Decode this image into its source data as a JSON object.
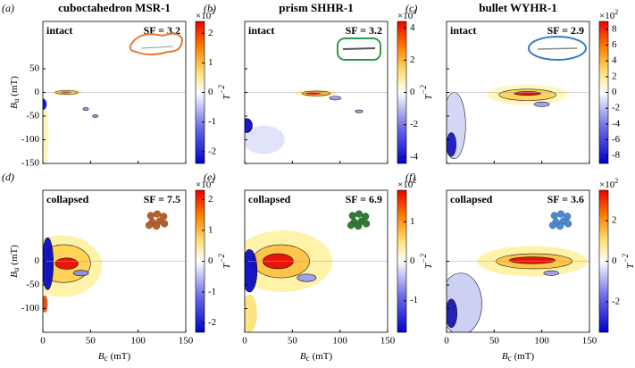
{
  "chart_data": [
    {
      "type": "contour",
      "panel_label": "(a)",
      "title": "cuboctahedron MSR-1",
      "state": "intact",
      "sf_label": "SF = 3.2",
      "shape_color": "#e8783a",
      "shape": "outline",
      "xlim": [
        0,
        150
      ],
      "xticks": [
        0,
        50,
        100,
        150
      ],
      "show_xtick_labels": false,
      "ylim": [
        -150,
        150
      ],
      "yticks": [
        -150,
        -100,
        -50,
        0,
        50
      ],
      "show_ytick_labels": true,
      "ylabel": "B",
      "ylabel_sub": "u",
      "ylabel_unit": "(mT)",
      "clim": [
        -2.4,
        2.4
      ],
      "cticks": [
        -2,
        -1,
        0,
        1,
        2
      ],
      "colorbar_scale": "×10",
      "colorbar_scale_exp": "5",
      "colorbar_label": "T",
      "colorbar_label_exp": "−2"
    },
    {
      "type": "contour",
      "panel_label": "(b)",
      "title": "prism SHHR-1",
      "state": "intact",
      "sf_label": "SF = 3.2",
      "shape_color": "#2e9a4a",
      "shape": "rounded",
      "xlim": [
        0,
        150
      ],
      "xticks": [
        0,
        50,
        100,
        150
      ],
      "show_xtick_labels": false,
      "ylim": [
        -150,
        150
      ],
      "yticks": [
        -150,
        -100,
        -50,
        0,
        50
      ],
      "show_ytick_labels": false,
      "clim": [
        -4.4,
        4.4
      ],
      "cticks": [
        -4,
        -2,
        0,
        2,
        4
      ],
      "colorbar_scale": "×10",
      "colorbar_scale_exp": "4",
      "colorbar_label": "T",
      "colorbar_label_exp": "−2"
    },
    {
      "type": "contour",
      "panel_label": "(c)",
      "title": "bullet WYHR-1",
      "state": "intact",
      "sf_label": "SF = 2.9",
      "shape_color": "#3a7ac8",
      "shape": "ellipse",
      "xlim": [
        0,
        150
      ],
      "xticks": [
        0,
        50,
        100,
        150
      ],
      "show_xtick_labels": false,
      "ylim": [
        -150,
        150
      ],
      "yticks": [
        -150,
        -100,
        -50,
        0,
        50
      ],
      "show_ytick_labels": false,
      "clim": [
        -9,
        9
      ],
      "cticks": [
        -8,
        -6,
        -4,
        -2,
        0,
        2,
        4,
        6,
        8
      ],
      "colorbar_scale": "×10",
      "colorbar_scale_exp": "2"
    },
    {
      "type": "contour",
      "panel_label": "(d)",
      "state": "collapsed",
      "sf_label": "SF = 7.5",
      "shape_color": "#b5612e",
      "shape": "cluster",
      "xlim": [
        0,
        150
      ],
      "xticks": [
        0,
        50,
        100,
        150
      ],
      "show_xtick_labels": true,
      "xlabel": "B",
      "xlabel_sub": "c",
      "xlabel_unit": "(mT)",
      "ylim": [
        -150,
        150
      ],
      "yticks": [
        -100,
        -50,
        0
      ],
      "show_ytick_labels": true,
      "ylabel": "B",
      "ylabel_sub": "u",
      "ylabel_unit": "(mT)",
      "clim": [
        -2.3,
        2.3
      ],
      "cticks": [
        -2,
        -1,
        0,
        1,
        2
      ],
      "colorbar_scale": "×10",
      "colorbar_scale_exp": "2",
      "colorbar_label": "T",
      "colorbar_label_exp": "−2"
    },
    {
      "type": "contour",
      "panel_label": "(e)",
      "state": "collapsed",
      "sf_label": "SF = 6.9",
      "shape_color": "#2f7a35",
      "shape": "cluster",
      "xlim": [
        0,
        150
      ],
      "xticks": [
        0,
        50,
        100,
        150
      ],
      "show_xtick_labels": true,
      "xlabel": "B",
      "xlabel_sub": "c",
      "xlabel_unit": "(mT)",
      "ylim": [
        -150,
        150
      ],
      "yticks": [
        -100,
        -50,
        0
      ],
      "show_ytick_labels": false,
      "clim": [
        -1.8,
        1.8
      ],
      "cticks": [
        -1,
        0,
        1
      ],
      "colorbar_scale": "×10",
      "colorbar_scale_exp": "2",
      "colorbar_label": "T",
      "colorbar_label_exp": "−2"
    },
    {
      "type": "contour",
      "panel_label": "(f)",
      "state": "collapsed",
      "sf_label": "SF = 3.6",
      "shape_color": "#4a8ad0",
      "shape": "cluster",
      "xlim": [
        0,
        150
      ],
      "xticks": [
        0,
        50,
        100,
        150
      ],
      "show_xtick_labels": true,
      "xlabel": "B",
      "xlabel_sub": "c",
      "xlabel_unit": "(mT)",
      "ylim": [
        -150,
        150
      ],
      "yticks": [
        -100,
        -50,
        0
      ],
      "show_ytick_labels": false,
      "clim": [
        -3.5,
        3.5
      ],
      "cticks": [
        -2,
        0,
        2
      ],
      "colorbar_scale": "×10",
      "colorbar_scale_exp": "2",
      "colorbar_label": "T",
      "colorbar_label_exp": "−2"
    }
  ]
}
